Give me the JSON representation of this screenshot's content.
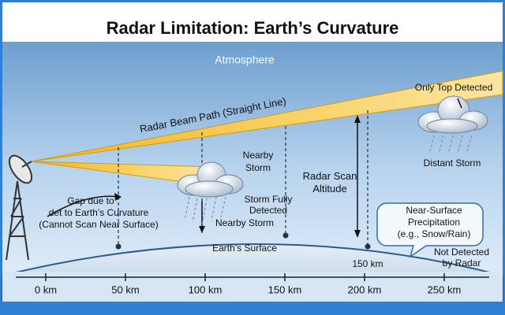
{
  "header": {
    "title": "Radar Limitation: Earth’s Curvature"
  },
  "labels": {
    "atmosphere": "Atmosphere",
    "only_top": "Only Top Detected",
    "beam": "Radar Beam Path (Straight Line)",
    "nearby_storm_top": [
      "Nearby",
      "Storm"
    ],
    "scan_altitude": [
      "Radar Scan",
      "Altitude"
    ],
    "distant_storm": "Distant Storm",
    "gap": [
      "Gap due to",
      "det to Earth’s Curvature",
      "(Cannot Scan Near Surface)"
    ],
    "fully_detected": [
      "Storm Fully",
      "Detected"
    ],
    "nearby_storm_bottom": "Nearby Storm",
    "precipitation": [
      "Near-Surface",
      "Precipitation",
      "(e.g., Snow/Rain)"
    ],
    "surface": "Earth’s Surface",
    "marker_150": "150 km",
    "not_detected": [
      "Not Detected",
      "by Radar"
    ]
  },
  "axis": {
    "ticks": [
      "0 km",
      "50 km",
      "100 km",
      "150 km",
      "200 km",
      "250 km"
    ]
  }
}
